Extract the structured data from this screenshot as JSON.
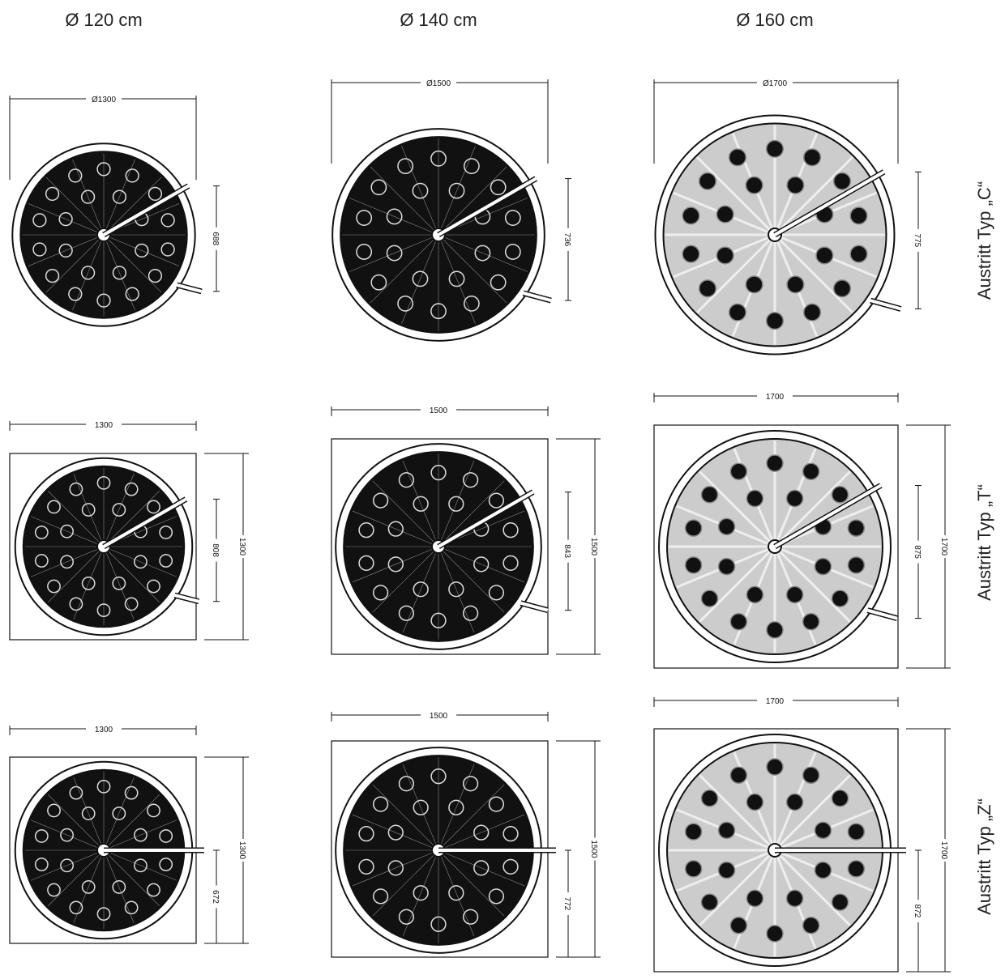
{
  "columns": [
    "Ø 120 cm",
    "Ø 140 cm",
    "Ø 160 cm"
  ],
  "rows": [
    {
      "label": "Austritt Typ „C“",
      "drawings": [
        {
          "width": "Ø1300",
          "exit": "688"
        },
        {
          "width": "Ø1500",
          "exit": "736"
        },
        {
          "width": "Ø1700",
          "exit": "775"
        }
      ]
    },
    {
      "label": "Austritt Typ „T“",
      "drawings": [
        {
          "width": "1300",
          "exit": "808",
          "height": "1300"
        },
        {
          "width": "1500",
          "exit": "843",
          "height": "1500"
        },
        {
          "width": "1700",
          "exit": "875",
          "height": "1700"
        }
      ]
    },
    {
      "label": "Austritt Typ „Z“",
      "drawings": [
        {
          "width": "1300",
          "exit": "672",
          "height": "1300"
        },
        {
          "width": "1500",
          "exit": "772",
          "height": "1500"
        },
        {
          "width": "1700",
          "exit": "872",
          "height": "1700"
        }
      ]
    }
  ]
}
